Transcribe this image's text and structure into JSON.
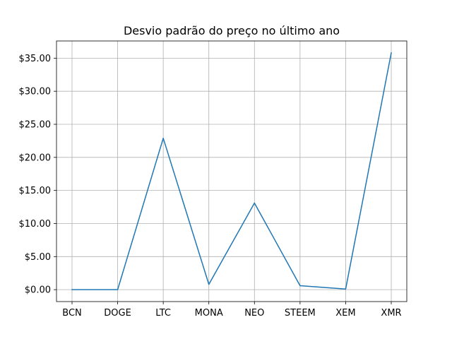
{
  "chart_data": {
    "type": "line",
    "title": "Desvio padrão do preço no último ano",
    "xlabel": "",
    "ylabel": "",
    "categories": [
      "BCN",
      "DOGE",
      "LTC",
      "MONA",
      "NEO",
      "STEEM",
      "XEM",
      "XMR"
    ],
    "series": [
      {
        "values": [
          0.0,
          0.0,
          22.9,
          0.8,
          13.1,
          0.6,
          0.1,
          35.8
        ]
      }
    ],
    "ylim": [
      -1.8,
      37.6
    ],
    "yticks": [
      0,
      5,
      10,
      15,
      20,
      25,
      30,
      35
    ],
    "ytick_labels": [
      "$0.00",
      "$5.00",
      "$10.00",
      "$15.00",
      "$20.00",
      "$25.00",
      "$30.00",
      "$35.00"
    ],
    "grid": true,
    "legend": "none",
    "colors": {
      "line": "#1f77b4",
      "grid": "#b0b0b0",
      "axes": "#000000"
    }
  }
}
